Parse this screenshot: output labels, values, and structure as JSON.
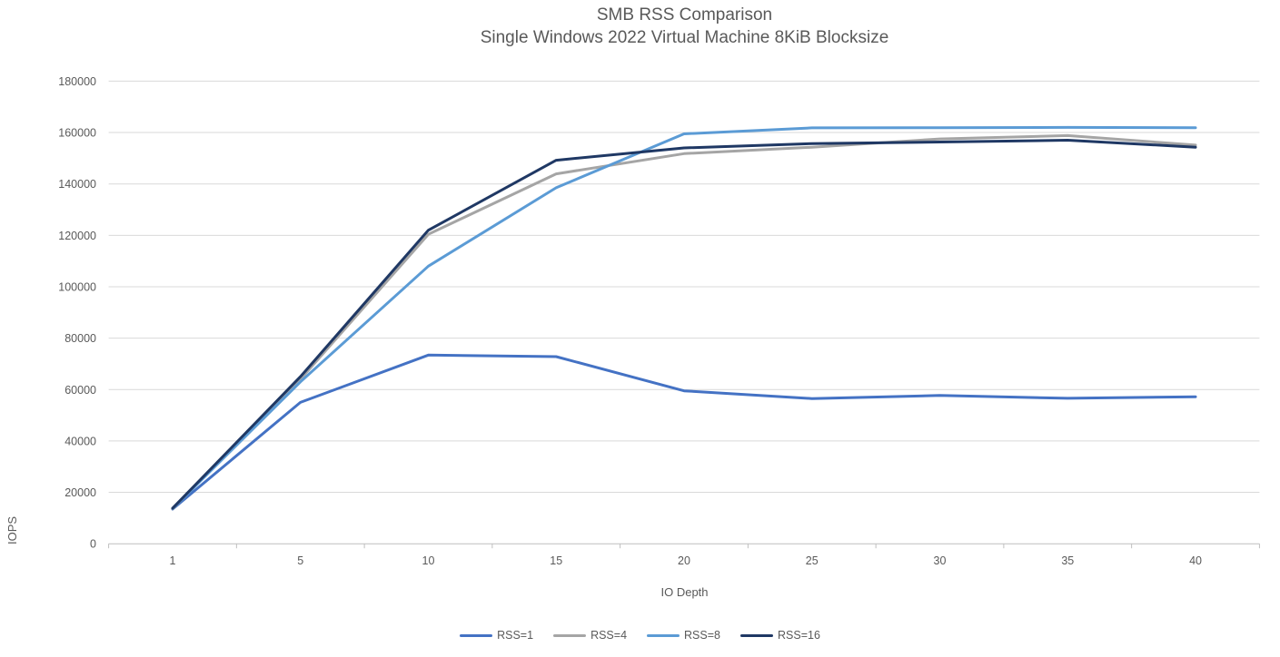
{
  "chart": {
    "title": "SMB RSS Comparison",
    "subtitle": "Single Windows 2022 Virtual Machine 8KiB Blocksize"
  },
  "chart_data": {
    "type": "line",
    "title": "SMB RSS Comparison",
    "subtitle": "Single Windows 2022 Virtual Machine 8KiB Blocksize",
    "xlabel": "IO Depth",
    "ylabel": "IOPS",
    "categories": [
      1,
      5,
      10,
      15,
      20,
      25,
      30,
      35,
      40
    ],
    "series": [
      {
        "name": "RSS=1",
        "color": "#4472C4",
        "values": [
          13500,
          55000,
          73400,
          72800,
          59500,
          56500,
          57700,
          56600,
          57200
        ]
      },
      {
        "name": "RSS=4",
        "color": "#A5A5A5",
        "values": [
          13600,
          64000,
          120400,
          143900,
          151800,
          154300,
          157500,
          158800,
          155100
        ]
      },
      {
        "name": "RSS=8",
        "color": "#5B9BD5",
        "values": [
          13700,
          63000,
          108000,
          138500,
          159500,
          161800,
          161900,
          162000,
          161900
        ]
      },
      {
        "name": "RSS=16",
        "color": "#1F3864",
        "values": [
          13800,
          65000,
          122000,
          149200,
          154000,
          155700,
          156300,
          157000,
          154300
        ]
      }
    ],
    "ylim": [
      0,
      180000
    ],
    "ytick_step": 20000,
    "grid": true,
    "legend_position": "bottom",
    "gridline_color": "#D9D9D9",
    "axis_line_color": "#BFBFBF",
    "tick_label_color": "#595959"
  }
}
